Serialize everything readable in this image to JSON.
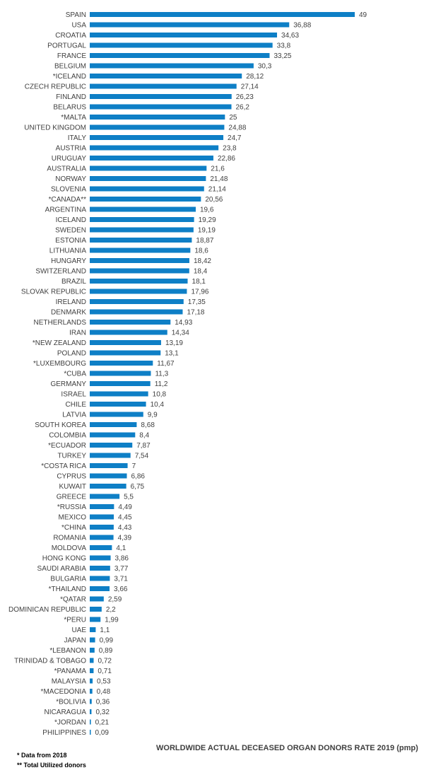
{
  "chart_data": {
    "type": "bar",
    "orientation": "horizontal",
    "title": "WORLDWIDE ACTUAL DECEASED ORGAN DONORS RATE 2019 (pmp)",
    "categories": [
      "SPAIN",
      "USA",
      "CROATIA",
      "PORTUGAL",
      "FRANCE",
      "BELGIUM",
      "*ICELAND",
      "CZECH REPUBLIC",
      "FINLAND",
      "BELARUS",
      "*MALTA",
      "UNITED KINGDOM",
      "ITALY",
      "AUSTRIA",
      "URUGUAY",
      "AUSTRALIA",
      "NORWAY",
      "SLOVENIA",
      "*CANADA**",
      "ARGENTINA",
      "ICELAND",
      "SWEDEN",
      "ESTONIA",
      "LITHUANIA",
      "HUNGARY",
      "SWITZERLAND",
      "BRAZIL",
      "SLOVAK REPUBLIC",
      "IRELAND",
      "DENMARK",
      "NETHERLANDS",
      "IRAN",
      "*NEW ZEALAND",
      "POLAND",
      "*LUXEMBOURG",
      "*CUBA",
      "GERMANY",
      "ISRAEL",
      "CHILE",
      "LATVIA",
      "SOUTH KOREA",
      "COLOMBIA",
      "*ECUADOR",
      "TURKEY",
      "*COSTA RICA",
      "CYPRUS",
      "KUWAIT",
      "GREECE",
      "*RUSSIA",
      "MEXICO",
      "*CHINA",
      "ROMANIA",
      "MOLDOVA",
      "HONG KONG",
      "SAUDI ARABIA",
      "BULGARIA",
      "*THAILAND",
      "*QATAR",
      "DOMINICAN REPUBLIC",
      "*PERU",
      "UAE",
      "JAPAN",
      "*LEBANON",
      "TRINIDAD & TOBAGO",
      "*PANAMA",
      "MALAYSIA",
      "*MACEDONIA",
      "*BOLIVIA",
      "NICARAGUA",
      "*JORDAN",
      "PHILIPPINES"
    ],
    "values": [
      49,
      36.88,
      34.63,
      33.8,
      33.25,
      30.3,
      28.12,
      27.14,
      26.23,
      26.2,
      25,
      24.88,
      24.7,
      23.8,
      22.86,
      21.6,
      21.48,
      21.14,
      20.56,
      19.6,
      19.29,
      19.19,
      18.87,
      18.6,
      18.42,
      18.4,
      18.1,
      17.96,
      17.35,
      17.18,
      14.93,
      14.34,
      13.19,
      13.1,
      11.67,
      11.3,
      11.2,
      10.8,
      10.4,
      9.9,
      8.68,
      8.4,
      7.87,
      7.54,
      7,
      6.86,
      6.75,
      5.5,
      4.49,
      4.45,
      4.43,
      4.39,
      4.1,
      3.86,
      3.77,
      3.71,
      3.66,
      2.59,
      2.2,
      1.99,
      1.1,
      0.99,
      0.89,
      0.72,
      0.71,
      0.53,
      0.48,
      0.36,
      0.32,
      0.21,
      0.09
    ],
    "value_labels": [
      "49",
      "36,88",
      "34,63",
      "33,8",
      "33,25",
      "30,3",
      "28,12",
      "27,14",
      "26,23",
      "26,2",
      "25",
      "24,88",
      "24,7",
      "23,8",
      "22,86",
      "21,6",
      "21,48",
      "21,14",
      "20,56",
      "19,6",
      "19,29",
      "19,19",
      "18,87",
      "18,6",
      "18,42",
      "18,4",
      "18,1",
      "17,96",
      "17,35",
      "17,18",
      "14,93",
      "14,34",
      "13,19",
      "13,1",
      "11,67",
      "11,3",
      "11,2",
      "10,8",
      "10,4",
      "9,9",
      "8,68",
      "8,4",
      "7,87",
      "7,54",
      "7",
      "6,86",
      "6,75",
      "5,5",
      "4,49",
      "4,45",
      "4,43",
      "4,39",
      "4,1",
      "3,86",
      "3,77",
      "3,71",
      "3,66",
      "2,59",
      "2,2",
      "1,99",
      "1,1",
      "0,99",
      "0,89",
      "0,72",
      "0,71",
      "0,53",
      "0,48",
      "0,36",
      "0,32",
      "0,21",
      "0,09"
    ],
    "xlim": [
      0,
      49
    ],
    "grid": false,
    "legend": "none",
    "bar_color": "#0e7fc6"
  },
  "footnotes": [
    "* Data from 2018",
    "** Total Utilized donors"
  ]
}
